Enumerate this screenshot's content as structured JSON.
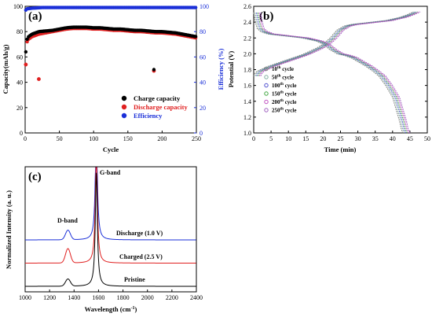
{
  "chart_data": [
    {
      "panel": "(a)",
      "type": "scatter",
      "xlabel": "Cycle",
      "ylabel": "Capacity(mAh/g)",
      "y2label": "Efficiency (%)",
      "xlim": [
        0,
        250
      ],
      "ylim": [
        0,
        100
      ],
      "y2lim": [
        0,
        100
      ],
      "xticks": [
        "0",
        "50",
        "100",
        "150",
        "200",
        "250"
      ],
      "yticks": [
        "0",
        "20",
        "40",
        "60",
        "80",
        "100"
      ],
      "y2ticks": [
        "0",
        "20",
        "40",
        "60",
        "80",
        "100"
      ],
      "legend_position": "bottom-right",
      "series": [
        {
          "name": "Charge capacity",
          "color": "#000000",
          "axis": "left",
          "x": [
            1,
            2,
            3,
            5,
            10,
            20,
            30,
            40,
            50,
            60,
            70,
            80,
            90,
            100,
            110,
            120,
            130,
            140,
            150,
            160,
            170,
            180,
            190,
            200,
            210,
            220,
            230,
            240,
            250
          ],
          "y": [
            64,
            70,
            74,
            76,
            78,
            80,
            80.5,
            81,
            82,
            83,
            83.5,
            83.5,
            83.5,
            83,
            83,
            82.5,
            82,
            82,
            81.5,
            81,
            81,
            80.5,
            80,
            80,
            79.5,
            79,
            78,
            77,
            76
          ]
        },
        {
          "name": "Discharge capacity",
          "color": "#e02020",
          "axis": "left",
          "x": [
            1,
            2,
            3,
            5,
            10,
            20,
            30,
            40,
            50,
            60,
            70,
            80,
            90,
            100,
            110,
            120,
            130,
            140,
            150,
            160,
            170,
            180,
            190,
            200,
            210,
            220,
            230,
            240,
            250
          ],
          "y": [
            54,
            68,
            72,
            74,
            76,
            78,
            79,
            80,
            81,
            82,
            82.5,
            82.5,
            82.5,
            82,
            82,
            81.5,
            81,
            81,
            80.5,
            80,
            80,
            79.5,
            79,
            79,
            78.5,
            78,
            77,
            76,
            75
          ],
          "outliers_x": [
            1,
            20,
            188
          ],
          "outliers_y": [
            54,
            42.5,
            49
          ]
        },
        {
          "name": "Efficiency",
          "color": "#1a2fd8",
          "axis": "right",
          "x": [
            1,
            3,
            10,
            25,
            50,
            75,
            100,
            125,
            150,
            175,
            200,
            225,
            250
          ],
          "y": [
            97,
            98,
            98.5,
            99,
            99,
            99,
            99,
            99,
            99,
            99,
            99,
            99,
            99
          ]
        }
      ]
    },
    {
      "panel": "(b)",
      "type": "line",
      "xlabel": "Time (min)",
      "ylabel": "Potential (V)",
      "xlim": [
        0,
        50
      ],
      "ylim": [
        1.0,
        2.6
      ],
      "xticks": [
        "0",
        "5",
        "10",
        "15",
        "20",
        "25",
        "30",
        "35",
        "40",
        "45",
        "50"
      ],
      "yticks": [
        "1.0",
        "1.2",
        "1.4",
        "1.6",
        "1.8",
        "2.0",
        "2.2",
        "2.4",
        "2.6"
      ],
      "legend_position": "center-left",
      "series": [
        {
          "name": "10",
          "color": "#7f7f7f",
          "shift": 0.0
        },
        {
          "name": "50",
          "color": "#7faf9f",
          "shift": 0.4
        },
        {
          "name": "100",
          "color": "#4f4fcf",
          "shift": 0.8
        },
        {
          "name": "150",
          "color": "#3fa53f",
          "shift": 1.2
        },
        {
          "name": "200",
          "color": "#c04fc0",
          "shift": 1.6
        },
        {
          "name": "250",
          "color": "#9f5fbf",
          "shift": 2.0
        }
      ],
      "legend_suffix_sup": "th",
      "legend_suffix": " cycle",
      "charge_curve": {
        "t": [
          0,
          0.5,
          1,
          2,
          4,
          6,
          8,
          10,
          12,
          14,
          16,
          18,
          20,
          22,
          24,
          26,
          28,
          30,
          32,
          34,
          36,
          38,
          40,
          42,
          44,
          45,
          46
        ],
        "v": [
          1.72,
          1.76,
          1.78,
          1.8,
          1.84,
          1.87,
          1.9,
          1.93,
          1.96,
          1.99,
          2.03,
          2.07,
          2.12,
          2.2,
          2.3,
          2.35,
          2.37,
          2.38,
          2.39,
          2.4,
          2.41,
          2.42,
          2.44,
          2.46,
          2.49,
          2.51,
          2.53
        ]
      },
      "discharge_curve": {
        "t": [
          0,
          0.5,
          1,
          2,
          4,
          6,
          8,
          10,
          12,
          14,
          16,
          18,
          20,
          22,
          24,
          26,
          28,
          30,
          32,
          34,
          36,
          38,
          40,
          41,
          42,
          42.5,
          43
        ],
        "v": [
          2.52,
          2.4,
          2.32,
          2.28,
          2.25,
          2.24,
          2.23,
          2.22,
          2.21,
          2.2,
          2.18,
          2.16,
          2.12,
          2.05,
          2.0,
          1.98,
          1.95,
          1.9,
          1.85,
          1.79,
          1.72,
          1.6,
          1.45,
          1.3,
          1.15,
          1.05,
          1.0
        ]
      }
    },
    {
      "panel": "(c)",
      "type": "line",
      "xlabel": "Wavelength (cm",
      "xlabel_sup": "-1",
      "xlabel_tail": ")",
      "ylabel": "Normalized Intensity (a. u.)",
      "xlim": [
        1000,
        2400
      ],
      "xticks": [
        "1000",
        "1200",
        "1400",
        "1600",
        "1800",
        "2000",
        "2200",
        "2400"
      ],
      "series": [
        {
          "name": "Discharge (1.0 V)",
          "color": "#1a2fd8",
          "offset": 2,
          "d_height": 0.08,
          "g_height": 0.95
        },
        {
          "name": "Charged (2.5 V)",
          "color": "#e02020",
          "offset": 1,
          "d_height": 0.12,
          "g_height": 0.95
        },
        {
          "name": "Pristine",
          "color": "#000000",
          "offset": 0,
          "d_height": 0.06,
          "g_height": 0.95
        }
      ],
      "peaks": {
        "D": 1350,
        "G": 1582
      },
      "annotations": [
        "D-band",
        "G-band"
      ]
    }
  ]
}
